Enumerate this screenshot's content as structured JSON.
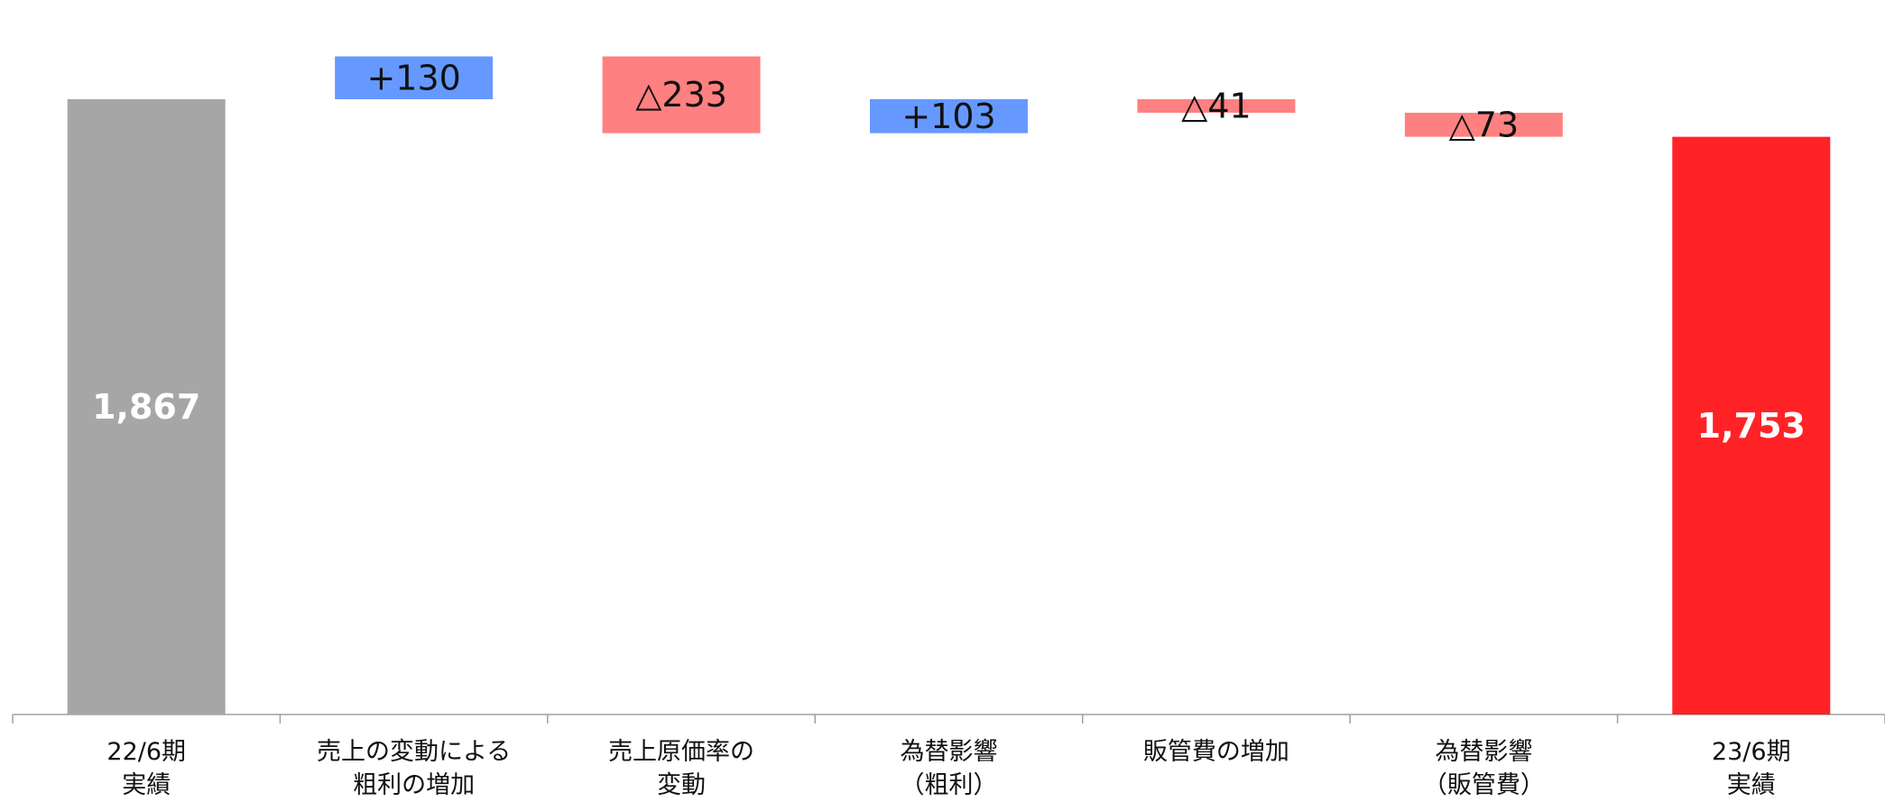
{
  "chart_data": {
    "type": "bar",
    "subtype": "waterfall",
    "categories": [
      [
        "22/6期",
        "実績"
      ],
      [
        "売上の変動による",
        "粗利の増加"
      ],
      [
        "売上原価率の",
        "変動"
      ],
      [
        "為替影響",
        "（粗利）"
      ],
      [
        "販管費の増加",
        ""
      ],
      [
        "為替影響",
        "（販管費）"
      ],
      [
        "23/6期",
        "実績"
      ]
    ],
    "steps": [
      {
        "kind": "total",
        "value": 1867,
        "label": "1,867",
        "color": "#A6A6A6"
      },
      {
        "kind": "increase",
        "value": 130,
        "label": "+130",
        "color": "#6699FF"
      },
      {
        "kind": "decrease",
        "value": -233,
        "label": "△233",
        "color": "#FF8080"
      },
      {
        "kind": "increase",
        "value": 103,
        "label": "+103",
        "color": "#6699FF"
      },
      {
        "kind": "decrease",
        "value": -41,
        "label": "△41",
        "color": "#FF8080"
      },
      {
        "kind": "decrease",
        "value": -73,
        "label": "△73",
        "color": "#FF8080"
      },
      {
        "kind": "total",
        "value": 1753,
        "label": "1,753",
        "color": "#FF2226"
      }
    ],
    "ylim": [
      0,
      2150
    ],
    "grid": false,
    "legend": "none",
    "xlabel": "",
    "ylabel": ""
  }
}
